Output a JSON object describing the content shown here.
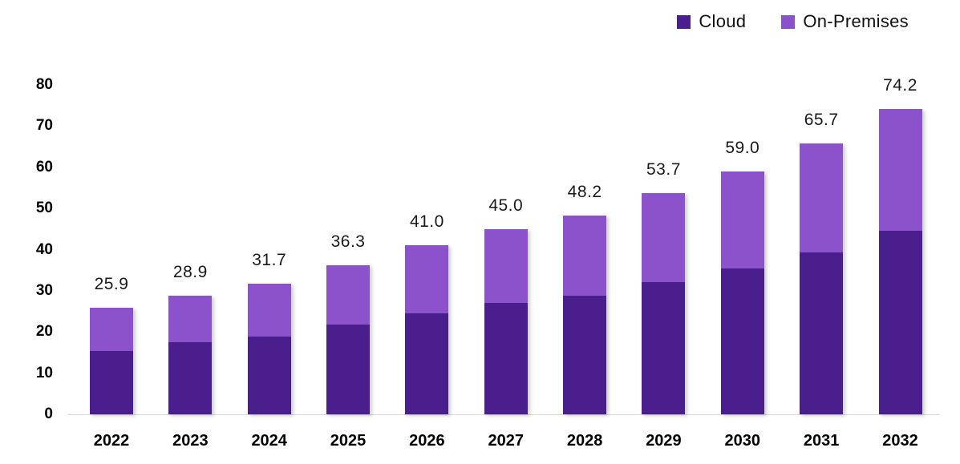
{
  "legend": {
    "items": [
      {
        "id": "cloud",
        "label": "Cloud",
        "color": "#4A1E8C"
      },
      {
        "id": "onpremises",
        "label": "On-Premises",
        "color": "#8C52CB"
      }
    ]
  },
  "colors": {
    "cloud": "#4A1E8C",
    "onpremises": "#8C52CB",
    "axis_line": "#d8d8d8",
    "text": "#000000",
    "background": "#ffffff"
  },
  "chart_data": {
    "type": "bar",
    "stacked": true,
    "title": "",
    "xlabel": "",
    "ylabel": "",
    "categories": [
      "2022",
      "2023",
      "2024",
      "2025",
      "2026",
      "2027",
      "2028",
      "2029",
      "2030",
      "2031",
      "2032"
    ],
    "series": [
      {
        "name": "Cloud",
        "color": "#4A1E8C",
        "values_estimated_from_pixels": true,
        "values": [
          15.4,
          17.5,
          18.9,
          21.8,
          24.5,
          27.0,
          28.8,
          32.1,
          35.4,
          39.3,
          44.6
        ]
      },
      {
        "name": "On-Premises",
        "color": "#8C52CB",
        "values_estimated_from_pixels": true,
        "values": [
          10.5,
          11.4,
          12.8,
          14.5,
          16.5,
          18.0,
          19.4,
          21.6,
          23.6,
          26.4,
          29.6
        ]
      }
    ],
    "totals": [
      25.9,
      28.9,
      31.7,
      36.3,
      41.0,
      45.0,
      48.2,
      53.7,
      59.0,
      65.7,
      74.2
    ],
    "total_labels": [
      "25.9",
      "28.9",
      "31.7",
      "36.3",
      "41.0",
      "45.0",
      "48.2",
      "53.7",
      "59.0",
      "65.7",
      "74.2"
    ],
    "ylim": [
      0,
      80
    ],
    "ytick_step": 10,
    "ytick_labels": [
      "0",
      "10",
      "20",
      "30",
      "40",
      "50",
      "60",
      "70",
      "80"
    ],
    "grid": false,
    "legend_position": "top-right",
    "data_labels": "total-above-bar"
  }
}
